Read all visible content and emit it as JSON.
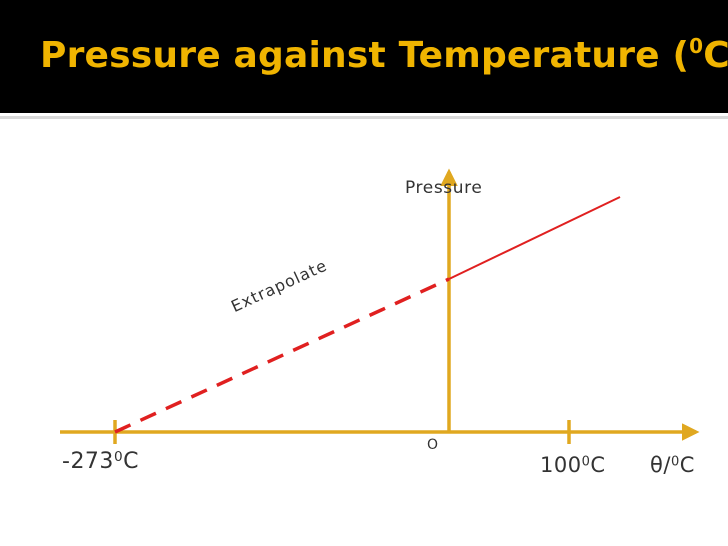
{
  "slide": {
    "title_text": "Pressure against Temperature (",
    "title_sup": "0",
    "title_end": "C)",
    "colors": {
      "title_band": "#000000",
      "title_text": "#f0b400",
      "axis": "#e0a820",
      "line": "#e02020"
    }
  },
  "diagram": {
    "y_axis_label": "Pressure",
    "extrapolate_label": "Extrapolate",
    "origin_label": "O",
    "tick_left": {
      "prefix": "-273",
      "sup": "0",
      "suffix": "C"
    },
    "tick_right": {
      "prefix": "100",
      "sup": "0",
      "suffix": "C"
    },
    "x_axis_label": {
      "prefix": "θ/",
      "sup": "0",
      "suffix": "C"
    }
  }
}
